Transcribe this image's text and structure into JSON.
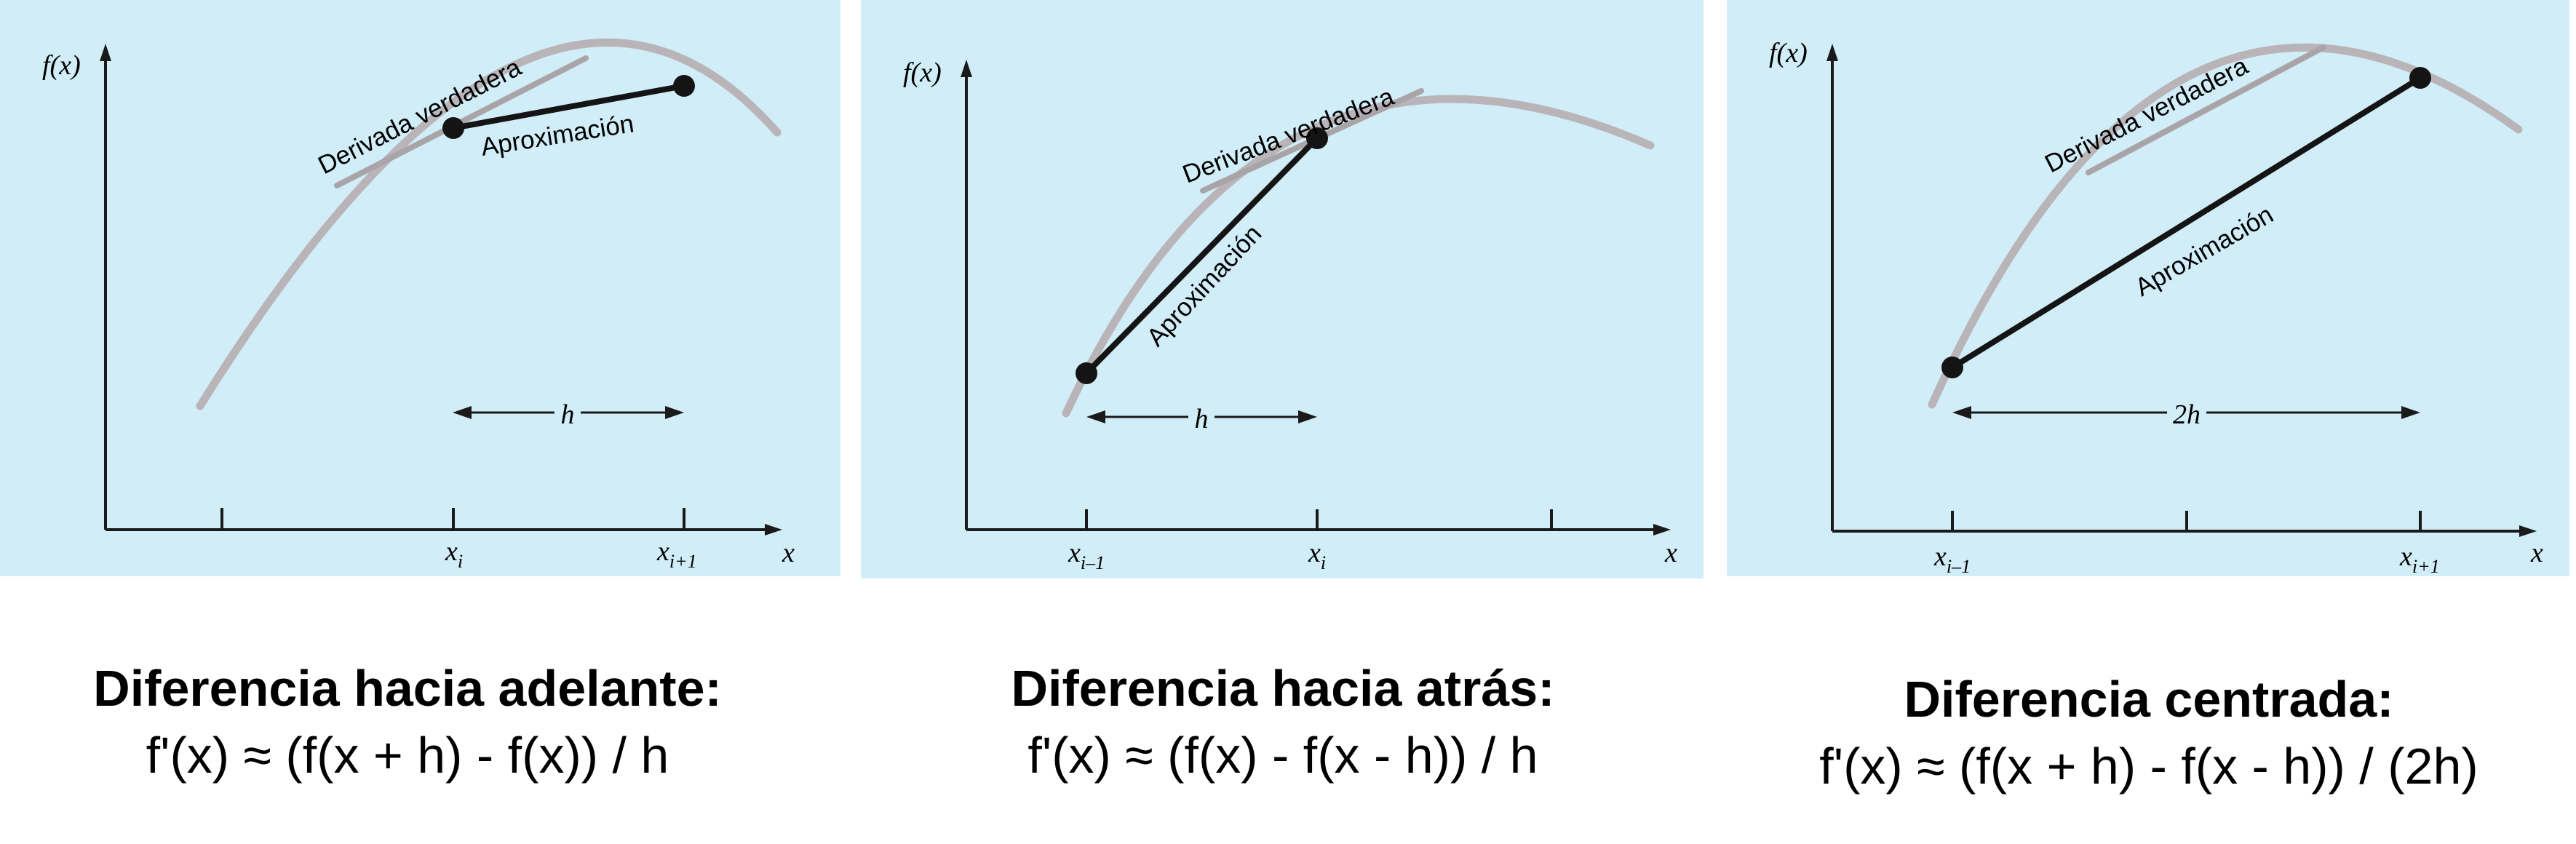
{
  "panels": [
    {
      "id": "forward",
      "y_axis_label": "f(x)",
      "x_axis_label": "x",
      "tick_labels": [
        {
          "base": "x",
          "sub": "i"
        },
        {
          "base": "x",
          "sub": "i+1"
        }
      ],
      "true_derivative_label": "Derivada verdadera",
      "approximation_label": "Aproximación",
      "step_label": "h",
      "caption_title": "Diferencia hacia adelante:",
      "caption_formula": "f'(x) ≈ (f(x + h) - f(x)) / h"
    },
    {
      "id": "backward",
      "y_axis_label": "f(x)",
      "x_axis_label": "x",
      "tick_labels": [
        {
          "base": "x",
          "sub": "i–1"
        },
        {
          "base": "x",
          "sub": "i"
        }
      ],
      "true_derivative_label": "Derivada verdadera",
      "approximation_label": "Aproximación",
      "step_label": "h",
      "caption_title": "Diferencia hacia atrás:",
      "caption_formula": "f'(x) ≈ (f(x) - f(x - h)) / h"
    },
    {
      "id": "centered",
      "y_axis_label": "f(x)",
      "x_axis_label": "x",
      "tick_labels": [
        {
          "base": "x",
          "sub": "i–1"
        },
        {
          "base": "x",
          "sub": "i+1"
        }
      ],
      "true_derivative_label": "Derivada verdadera",
      "approximation_label": "Aproximación",
      "step_label": "2h",
      "caption_title": "Diferencia centrada:",
      "caption_formula": "f'(x) ≈ (f(x + h) - f(x - h)) / (2h)"
    }
  ],
  "colors": {
    "panel_background": "#d1edf8",
    "curve": "#b9b4b8",
    "tangent": "#a9a4a8",
    "approximation_line": "#141414",
    "axis": "#1a1a1a"
  }
}
